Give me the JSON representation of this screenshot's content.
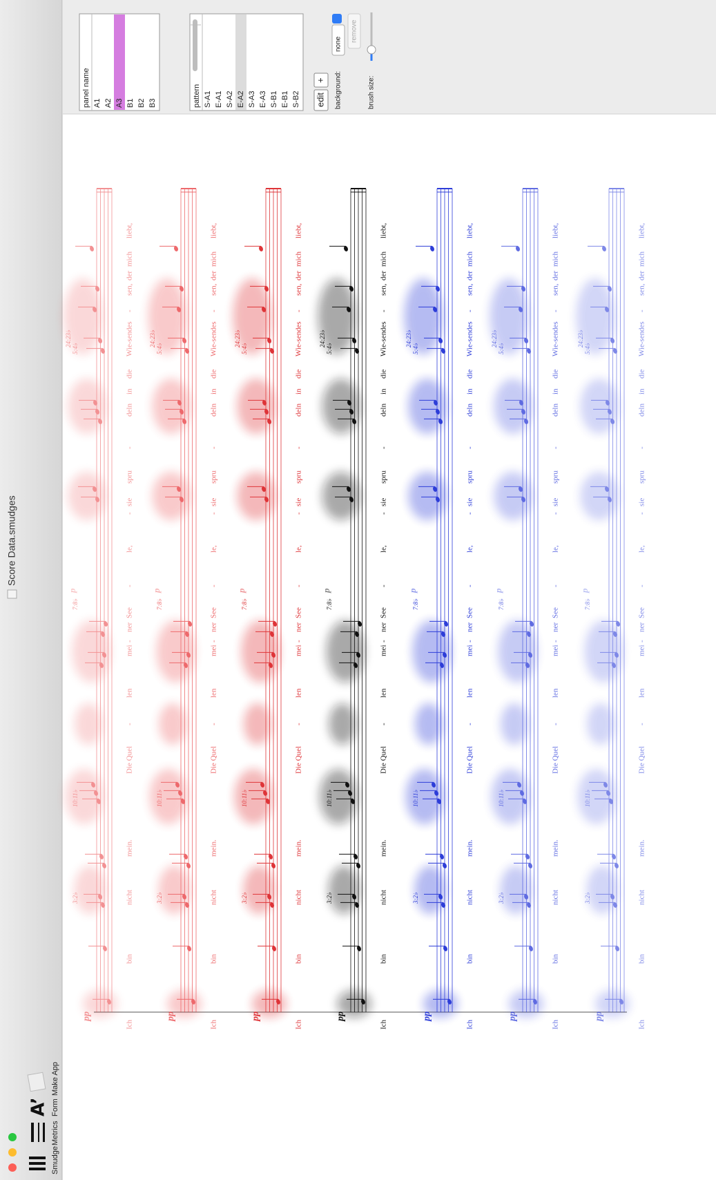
{
  "window": {
    "title": "Score Data.smudges",
    "toolbar": [
      "Smudge",
      "Metrics",
      "Form",
      "Make App"
    ]
  },
  "panels": {
    "header": "panel name",
    "items": [
      "A1",
      "A2",
      "A3",
      "B1",
      "B2",
      "B3"
    ],
    "selected_index": 2,
    "selected_color": "#d57de0"
  },
  "patterns": {
    "header": "pattern",
    "items": [
      "S-A1",
      "E-A1",
      "S-A2",
      "E-A2",
      "S-A3",
      "E-A3",
      "S-B1",
      "E-B1",
      "S-B2"
    ],
    "selected_index": 3,
    "selected_color": "#dcdcdc"
  },
  "controls": {
    "edit": "edit",
    "add": "+",
    "background_label": "background:",
    "background_value": "none",
    "remove": "remove",
    "brush_label": "brush size:"
  },
  "score": {
    "dynamic": "pp",
    "soft": "p",
    "tuplets": [
      "3:2♭",
      "10:11♭",
      "7:8♭",
      "5:4♭",
      "24:23♭"
    ],
    "lyrics": [
      "Ich",
      "bin",
      "nicht",
      "mein.",
      "Die Quel",
      "-",
      "len",
      "mei",
      "-",
      "ner",
      "See",
      "-",
      "le,",
      "-",
      "sie",
      "spru",
      "-",
      "deln",
      "in",
      "die",
      "Wie-sen",
      "des",
      "-",
      "sen,",
      "der",
      "mich",
      "liebt,"
    ],
    "staves": [
      {
        "color": "#e8383b",
        "opacity": 0.55
      },
      {
        "color": "#e8383b",
        "opacity": 0.75
      },
      {
        "color": "#dd2a2e",
        "opacity": 0.95
      },
      {
        "color": "#111111",
        "opacity": 1
      },
      {
        "color": "#2233d6",
        "opacity": 0.95
      },
      {
        "color": "#2a3ad8",
        "opacity": 0.75
      },
      {
        "color": "#2a3ad8",
        "opacity": 0.6
      }
    ]
  }
}
